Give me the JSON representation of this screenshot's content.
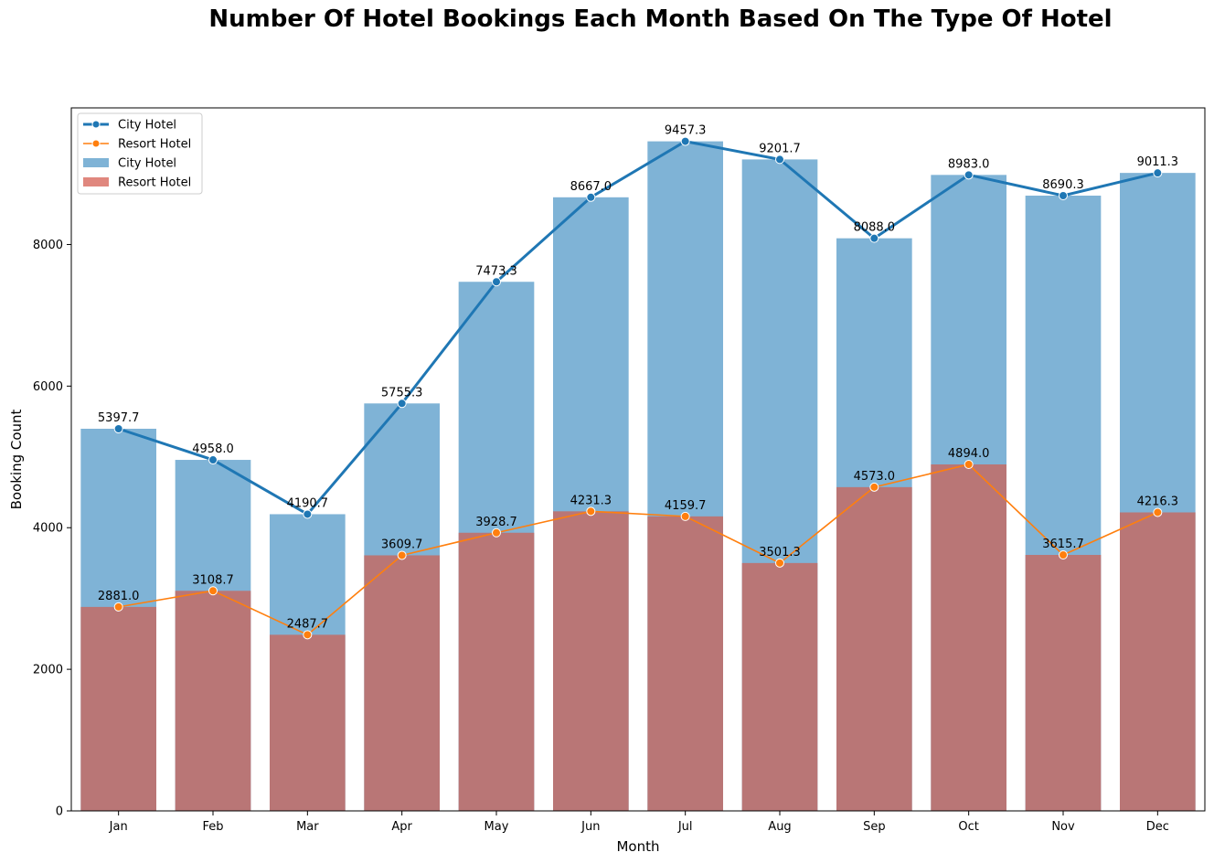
{
  "chart_data": {
    "type": "bar",
    "title": "Number Of Hotel Bookings Each Month Based On The Type Of Hotel",
    "xlabel": "Month",
    "ylabel": "Booking Count",
    "ylim": [
      0,
      9930
    ],
    "yticks": [
      0,
      2000,
      4000,
      6000,
      8000
    ],
    "grid": false,
    "legend_position": "top-left",
    "categories": [
      "Jan",
      "Feb",
      "Mar",
      "Apr",
      "May",
      "Jun",
      "Jul",
      "Aug",
      "Sep",
      "Oct",
      "Nov",
      "Dec"
    ],
    "series": [
      {
        "name": "City Hotel",
        "kind": "line",
        "color": "#1f77b4",
        "values": [
          5397.7,
          4958.0,
          4190.7,
          5755.3,
          7473.3,
          8667.0,
          9457.3,
          9201.7,
          8088.0,
          8983.0,
          8690.3,
          9011.3
        ],
        "labels": [
          "5397.7",
          "4958.0",
          "4190.7",
          "5755.3",
          "7473.3",
          "8667.0",
          "9457.3",
          "9201.7",
          "8088.0",
          "8983.0",
          "8690.3",
          "9011.3"
        ]
      },
      {
        "name": "Resort Hotel",
        "kind": "line",
        "color": "#ff7f0e",
        "values": [
          2881.0,
          3108.7,
          2487.7,
          3609.7,
          3928.7,
          4231.3,
          4159.7,
          3501.3,
          4573.0,
          4894.0,
          3615.7,
          4216.3
        ],
        "labels": [
          "2881.0",
          "3108.7",
          "2487.7",
          "3609.7",
          "3928.7",
          "4231.3",
          "4159.7",
          "3501.3",
          "4573.0",
          "4894.0",
          "3615.7",
          "4216.3"
        ]
      },
      {
        "name": "City Hotel",
        "kind": "bar",
        "color": "#7fb3d6",
        "values": [
          5397.7,
          4958.0,
          4190.7,
          5755.3,
          7473.3,
          8667.0,
          9457.3,
          9201.7,
          8088.0,
          8983.0,
          8690.3,
          9011.3
        ]
      },
      {
        "name": "Resort Hotel",
        "kind": "bar",
        "color": "#b97676",
        "legend_color": "#e0877e",
        "values": [
          2881.0,
          3108.7,
          2487.7,
          3609.7,
          3928.7,
          4231.3,
          4159.7,
          3501.3,
          4573.0,
          4894.0,
          3615.7,
          4216.3
        ]
      }
    ]
  }
}
